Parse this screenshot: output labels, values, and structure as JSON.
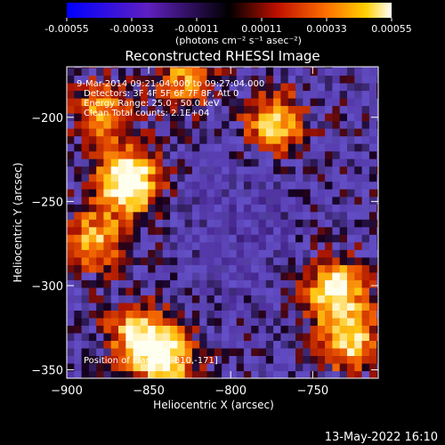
{
  "chart_data": {
    "type": "heatmap",
    "title": "Reconstructed RHESSI Image",
    "xlabel": "Heliocentric X (arcsec)",
    "ylabel": "Heliocentric Y (arcsec)",
    "xlim": [
      -900,
      -710
    ],
    "ylim": [
      -355,
      -170
    ],
    "x_ticks": [
      -900,
      -850,
      -800,
      -750
    ],
    "y_ticks": [
      -200,
      -250,
      -300,
      -350
    ],
    "colorbar": {
      "ticks": [
        "-0.00055",
        "-0.00033",
        "-0.00011",
        "0.00011",
        "0.00033",
        "0.00055"
      ],
      "unit_text": "(photons cm⁻² s⁻¹ asec⁻²)",
      "range": [
        -0.00055,
        0.00055
      ]
    },
    "annotations": [
      "9-Mar-2014 09:21:04.000 to 09:27:04.000",
      "Detectors: 3F 4F 5F 6F 7F 8F, Att 0",
      "Energy Range: 25.0 - 50.0 keV",
      "Clean     Total counts: 2.1E+04"
    ],
    "flare_position": "Position of Flare = [-810,-171]",
    "grid": false,
    "hotspots": [
      {
        "x": -865,
        "y": -240,
        "intensity": 1.0
      },
      {
        "x": -843,
        "y": -345,
        "intensity": 0.85
      },
      {
        "x": -738,
        "y": -305,
        "intensity": 0.8
      },
      {
        "x": -775,
        "y": -205,
        "intensity": 0.65
      },
      {
        "x": -880,
        "y": -200,
        "intensity": 0.6
      },
      {
        "x": -885,
        "y": -275,
        "intensity": 0.6
      },
      {
        "x": -730,
        "y": -335,
        "intensity": 0.7
      },
      {
        "x": -830,
        "y": -180,
        "intensity": 0.5
      },
      {
        "x": -860,
        "y": -330,
        "intensity": 0.6
      }
    ]
  },
  "footer_date": "13-May-2022 16:10"
}
